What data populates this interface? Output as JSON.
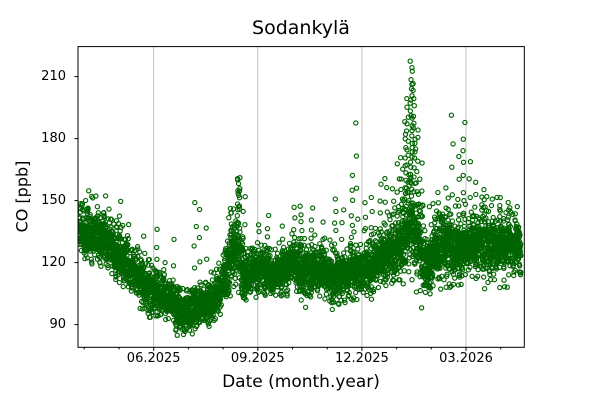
{
  "chart_data": {
    "type": "scatter",
    "title": "Sodankylä",
    "xlabel": "Date (month.year)",
    "ylabel": "CO [ppb]",
    "station": "Sodankylä",
    "x_unit": "months since 2025-01 (6 = 06.2025, 15 = 03.2026)",
    "xlim": [
      3.82,
      16.68
    ],
    "ylim": [
      79.0,
      224.5
    ],
    "xticks": [
      {
        "pos": 6,
        "label": "06.2025"
      },
      {
        "pos": 9,
        "label": "09.2025"
      },
      {
        "pos": 12,
        "label": "12.2025"
      },
      {
        "pos": 15,
        "label": "03.2026"
      }
    ],
    "xminorticks": [
      4,
      5,
      7,
      8,
      10,
      11,
      13,
      14,
      16
    ],
    "yticks": [
      {
        "pos": 90,
        "label": "90"
      },
      {
        "pos": 120,
        "label": "120"
      },
      {
        "pos": 150,
        "label": "150"
      },
      {
        "pos": 180,
        "label": "180"
      },
      {
        "pos": 210,
        "label": "210"
      }
    ],
    "grid": {
      "axis": "x",
      "color": "#b1b1b1",
      "horizontal": false
    },
    "marker": {
      "shape": "open-circle",
      "color": "#006400",
      "radius": 2.1,
      "stroke_width": 1.15
    },
    "background": "#ffffff",
    "axes_color": "#000000",
    "seed": 1337,
    "n_base_points": 5400,
    "data_x_range": [
      3.85,
      16.58
    ],
    "band_envelope": [
      [
        3.85,
        123,
        146
      ],
      [
        4.2,
        122,
        145
      ],
      [
        4.6,
        120,
        143
      ],
      [
        5.0,
        112,
        135
      ],
      [
        5.4,
        106,
        124
      ],
      [
        5.8,
        99,
        119
      ],
      [
        6.2,
        94,
        114
      ],
      [
        6.6,
        91,
        109
      ],
      [
        7.0,
        87,
        104
      ],
      [
        7.3,
        89,
        108
      ],
      [
        7.6,
        92,
        109
      ],
      [
        8.0,
        99,
        119
      ],
      [
        8.15,
        103,
        133
      ],
      [
        8.3,
        107,
        143
      ],
      [
        8.45,
        109,
        146
      ],
      [
        8.6,
        103,
        128
      ],
      [
        9.0,
        106,
        125
      ],
      [
        9.4,
        105,
        123
      ],
      [
        9.8,
        107,
        126
      ],
      [
        10.2,
        107,
        128
      ],
      [
        10.6,
        106,
        127
      ],
      [
        11.0,
        103,
        125
      ],
      [
        11.4,
        102,
        124
      ],
      [
        11.8,
        104,
        127
      ],
      [
        12.2,
        106,
        129
      ],
      [
        12.6,
        109,
        132
      ],
      [
        13.0,
        112,
        140
      ],
      [
        13.3,
        115,
        155
      ],
      [
        13.45,
        117,
        160
      ],
      [
        13.6,
        112,
        148
      ],
      [
        13.85,
        105,
        133
      ],
      [
        14.1,
        112,
        141
      ],
      [
        14.4,
        114,
        142
      ],
      [
        14.7,
        114,
        141
      ],
      [
        15.0,
        115,
        143
      ],
      [
        15.3,
        114,
        142
      ],
      [
        15.7,
        115,
        144
      ],
      [
        16.0,
        114,
        142
      ],
      [
        16.3,
        115,
        140
      ],
      [
        16.58,
        117,
        139
      ]
    ],
    "spike_events": [
      [
        3.95,
        150,
        3
      ],
      [
        4.1,
        155,
        2
      ],
      [
        4.35,
        152,
        2
      ],
      [
        4.6,
        154,
        2
      ],
      [
        5.05,
        151,
        3
      ],
      [
        5.3,
        140,
        3
      ],
      [
        5.75,
        133,
        3
      ],
      [
        6.1,
        136,
        4
      ],
      [
        6.6,
        131,
        3
      ],
      [
        7.2,
        150,
        5
      ],
      [
        7.35,
        146,
        4
      ],
      [
        7.55,
        138,
        3
      ],
      [
        8.2,
        148,
        5
      ],
      [
        8.45,
        163,
        14
      ],
      [
        8.6,
        152,
        5
      ],
      [
        9.0,
        140,
        4
      ],
      [
        9.3,
        143,
        5
      ],
      [
        9.7,
        139,
        3
      ],
      [
        10.05,
        147,
        5
      ],
      [
        10.25,
        148,
        6
      ],
      [
        10.55,
        147,
        5
      ],
      [
        10.9,
        140,
        3
      ],
      [
        11.25,
        152,
        6
      ],
      [
        11.45,
        147,
        4
      ],
      [
        11.7,
        163,
        7
      ],
      [
        11.85,
        188,
        5
      ],
      [
        12.1,
        150,
        4
      ],
      [
        12.3,
        152,
        4
      ],
      [
        12.55,
        158,
        5
      ],
      [
        12.7,
        162,
        6
      ],
      [
        12.9,
        156,
        4
      ],
      [
        13.05,
        168,
        5
      ],
      [
        13.15,
        172,
        6
      ],
      [
        13.25,
        188,
        10
      ],
      [
        13.32,
        200,
        12
      ],
      [
        13.42,
        218,
        24
      ],
      [
        13.5,
        207,
        15
      ],
      [
        13.58,
        186,
        8
      ],
      [
        13.7,
        168,
        5
      ],
      [
        14.2,
        155,
        4
      ],
      [
        14.45,
        158,
        4
      ],
      [
        14.6,
        192,
        5
      ],
      [
        14.8,
        172,
        4
      ],
      [
        14.95,
        188,
        8
      ],
      [
        15.1,
        170,
        4
      ],
      [
        15.25,
        160,
        4
      ],
      [
        15.5,
        157,
        4
      ],
      [
        15.75,
        152,
        3
      ],
      [
        16.0,
        153,
        4
      ],
      [
        16.25,
        150,
        3
      ],
      [
        16.45,
        148,
        3
      ]
    ],
    "low_outliers": [
      [
        5.9,
        92,
        2
      ],
      [
        6.65,
        84,
        3
      ],
      [
        6.9,
        86,
        3
      ],
      [
        7.6,
        88,
        2
      ],
      [
        10.38,
        96,
        2
      ],
      [
        11.15,
        99,
        2
      ],
      [
        13.7,
        98,
        2
      ]
    ],
    "value_extremes": {
      "min": 84,
      "max": 218
    }
  }
}
